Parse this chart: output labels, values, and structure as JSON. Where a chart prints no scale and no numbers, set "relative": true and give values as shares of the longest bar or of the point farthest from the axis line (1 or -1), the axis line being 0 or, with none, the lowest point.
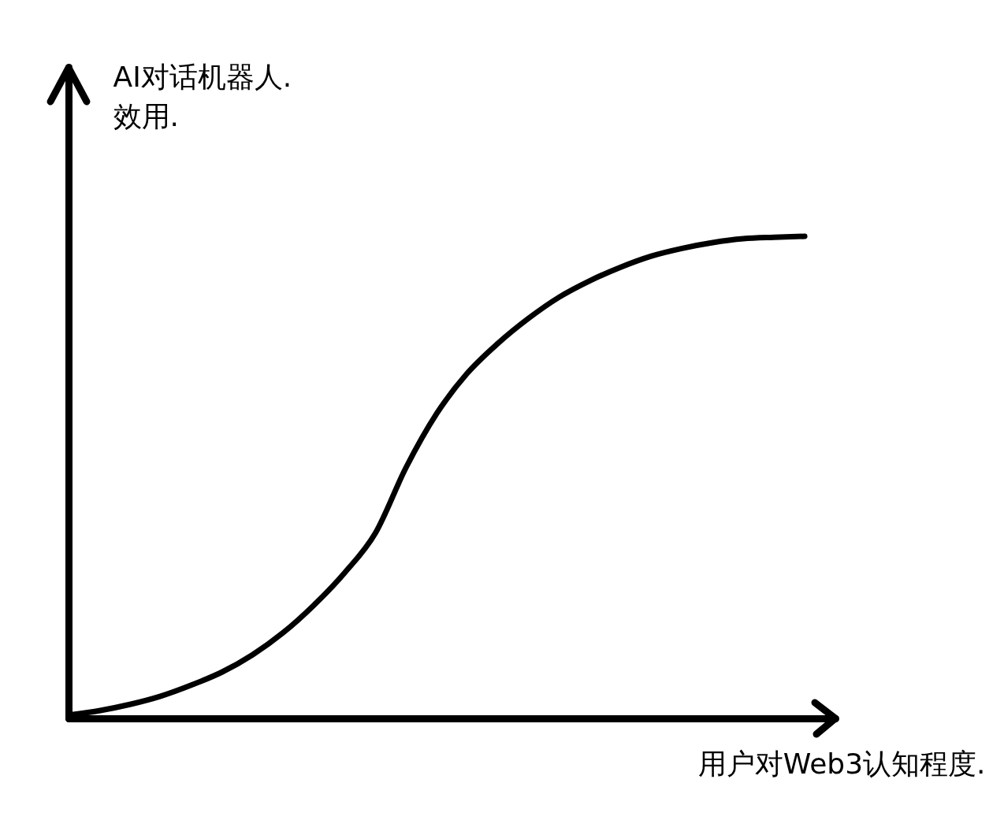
{
  "chart_data": {
    "type": "line",
    "xlabel": "用户对Web3认知程度.",
    "ylabel": "AI对话机器人.\n效用.",
    "relative": true,
    "categories": [
      null,
      null,
      null,
      null,
      null,
      null,
      null,
      null,
      null,
      null,
      null,
      null,
      null,
      null,
      null,
      null,
      null,
      null,
      null,
      null,
      null,
      null,
      null,
      null,
      null
    ],
    "series": [
      {
        "color": "#000000",
        "values": [
          0.007,
          0.016,
          0.029,
          0.046,
          0.069,
          0.096,
          0.132,
          0.178,
          0.235,
          0.302,
          0.384,
          0.52,
          0.632,
          0.716,
          0.778,
          0.83,
          0.874,
          0.908,
          0.936,
          0.959,
          0.975,
          0.987,
          0.995,
          0.998,
          1
        ]
      }
    ]
  }
}
